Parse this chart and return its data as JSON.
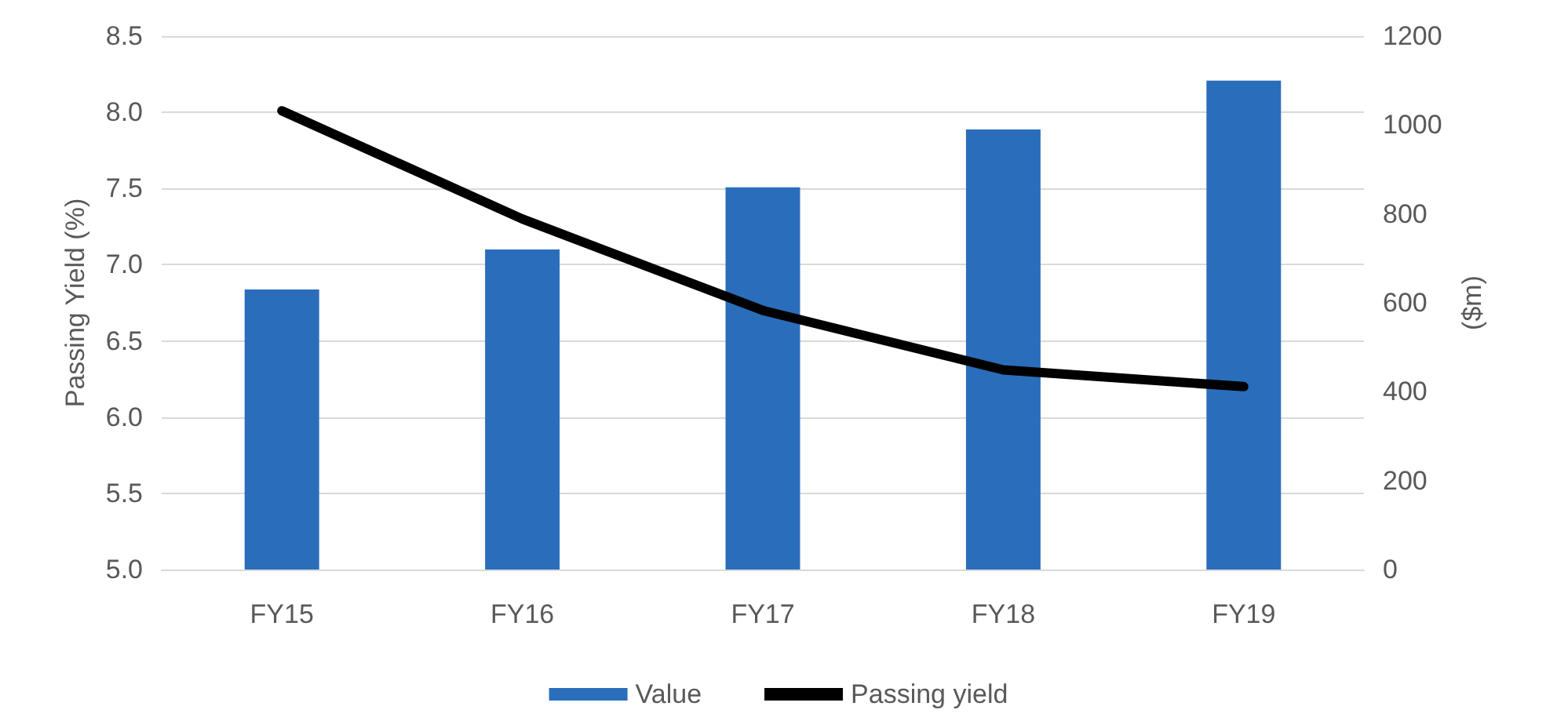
{
  "chart_data": {
    "type": "bar",
    "categories": [
      "FY15",
      "FY16",
      "FY17",
      "FY18",
      "FY19"
    ],
    "series": [
      {
        "name": "Value",
        "axis": "y2",
        "color": "#2a6ebb",
        "values": [
          630,
          720,
          860,
          990,
          1100
        ]
      },
      {
        "name": "Passing yield",
        "type": "line",
        "color": "#000000",
        "values": [
          8.01,
          7.3,
          6.7,
          6.31,
          6.2
        ]
      }
    ],
    "ylabel": "Passing Yield (%)",
    "y2label": "($m)",
    "ylim": [
      5,
      8.5
    ],
    "yticks": [
      {
        "value": 5,
        "label": "5.0"
      },
      5.5,
      {
        "value": 6,
        "label": "6.0"
      },
      6.5,
      {
        "value": 7,
        "label": "7.0"
      },
      7.5,
      {
        "value": 8,
        "label": "8.0"
      },
      8.5
    ],
    "y2lim": [
      0,
      1200
    ],
    "y2ticks": [
      0,
      200,
      400,
      600,
      800,
      1000,
      1200
    ],
    "grid": "y",
    "legend": "bottom",
    "marker": "none",
    "line_style": "solid"
  }
}
